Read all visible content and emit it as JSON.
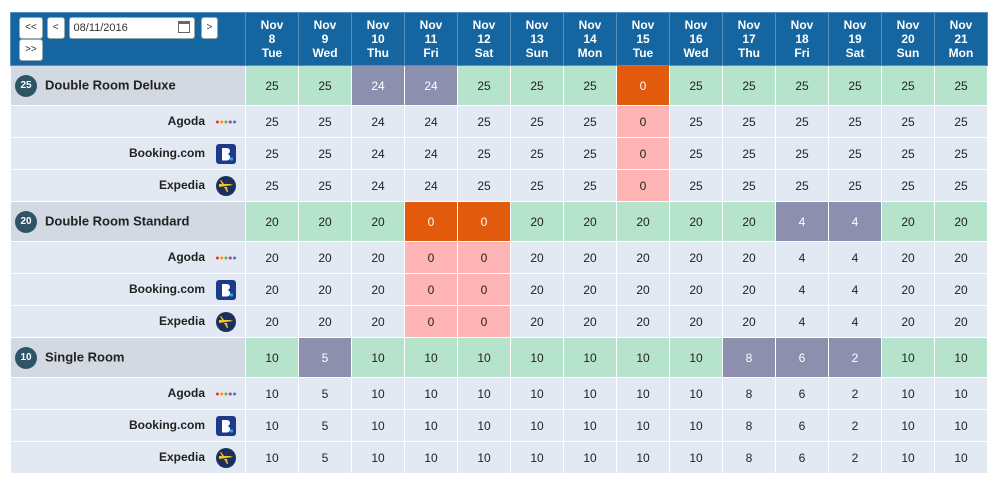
{
  "navigation": {
    "buttons": [
      "<<",
      "<",
      ">",
      ">>"
    ],
    "date": "08/11/2016"
  },
  "columns": [
    {
      "month": "Nov",
      "day": 8,
      "weekday": "Tue"
    },
    {
      "month": "Nov",
      "day": 9,
      "weekday": "Wed"
    },
    {
      "month": "Nov",
      "day": 10,
      "weekday": "Thu"
    },
    {
      "month": "Nov",
      "day": 11,
      "weekday": "Fri"
    },
    {
      "month": "Nov",
      "day": 12,
      "weekday": "Sat"
    },
    {
      "month": "Nov",
      "day": 13,
      "weekday": "Sun"
    },
    {
      "month": "Nov",
      "day": 14,
      "weekday": "Mon"
    },
    {
      "month": "Nov",
      "day": 15,
      "weekday": "Tue"
    },
    {
      "month": "Nov",
      "day": 16,
      "weekday": "Wed"
    },
    {
      "month": "Nov",
      "day": 17,
      "weekday": "Thu"
    },
    {
      "month": "Nov",
      "day": 18,
      "weekday": "Fri"
    },
    {
      "month": "Nov",
      "day": 19,
      "weekday": "Sat"
    },
    {
      "month": "Nov",
      "day": 20,
      "weekday": "Sun"
    },
    {
      "month": "Nov",
      "day": 21,
      "weekday": "Mon"
    }
  ],
  "rooms": [
    {
      "badge": 25,
      "name": "Double Room Deluxe",
      "values": [
        25,
        25,
        24,
        24,
        25,
        25,
        25,
        0,
        25,
        25,
        25,
        25,
        25,
        25
      ],
      "channels": [
        {
          "name": "Agoda",
          "values": [
            25,
            25,
            24,
            24,
            25,
            25,
            25,
            0,
            25,
            25,
            25,
            25,
            25,
            25
          ]
        },
        {
          "name": "Booking.com",
          "values": [
            25,
            25,
            24,
            24,
            25,
            25,
            25,
            0,
            25,
            25,
            25,
            25,
            25,
            25
          ]
        },
        {
          "name": "Expedia",
          "values": [
            25,
            25,
            24,
            24,
            25,
            25,
            25,
            0,
            25,
            25,
            25,
            25,
            25,
            25
          ]
        }
      ]
    },
    {
      "badge": 20,
      "name": "Double Room Standard",
      "values": [
        20,
        20,
        20,
        0,
        0,
        20,
        20,
        20,
        20,
        20,
        4,
        4,
        20,
        20
      ],
      "channels": [
        {
          "name": "Agoda",
          "values": [
            20,
            20,
            20,
            0,
            0,
            20,
            20,
            20,
            20,
            20,
            4,
            4,
            20,
            20
          ]
        },
        {
          "name": "Booking.com",
          "values": [
            20,
            20,
            20,
            0,
            0,
            20,
            20,
            20,
            20,
            20,
            4,
            4,
            20,
            20
          ]
        },
        {
          "name": "Expedia",
          "values": [
            20,
            20,
            20,
            0,
            0,
            20,
            20,
            20,
            20,
            20,
            4,
            4,
            20,
            20
          ]
        }
      ]
    },
    {
      "badge": 10,
      "name": "Single Room",
      "values": [
        10,
        5,
        10,
        10,
        10,
        10,
        10,
        10,
        10,
        8,
        6,
        2,
        10,
        10
      ],
      "channels": [
        {
          "name": "Agoda",
          "values": [
            10,
            5,
            10,
            10,
            10,
            10,
            10,
            10,
            10,
            8,
            6,
            2,
            10,
            10
          ]
        },
        {
          "name": "Booking.com",
          "values": [
            10,
            5,
            10,
            10,
            10,
            10,
            10,
            10,
            10,
            8,
            6,
            2,
            10,
            10
          ]
        },
        {
          "name": "Expedia",
          "values": [
            10,
            5,
            10,
            10,
            10,
            10,
            10,
            10,
            10,
            8,
            6,
            2,
            10,
            10
          ]
        }
      ]
    }
  ]
}
